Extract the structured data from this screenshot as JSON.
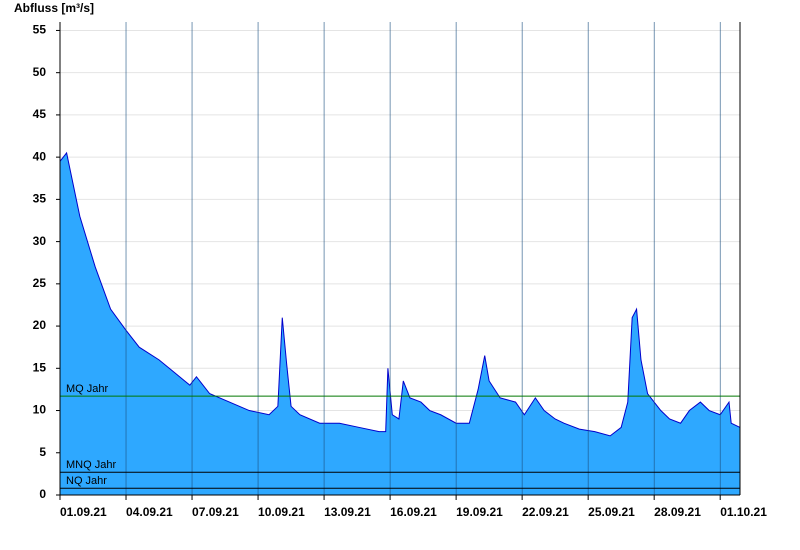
{
  "chart_data": {
    "type": "area",
    "y_label": "Abfluss [m³/s]",
    "x": [
      0,
      0.3,
      0.9,
      1.6,
      2.3,
      3,
      3.6,
      4.5,
      5.2,
      5.9,
      6.2,
      6.8,
      7.7,
      8.6,
      9.5,
      9.9,
      10.1,
      10.3,
      10.5,
      10.9,
      11.8,
      12.7,
      13.6,
      14.5,
      14.8,
      14.9,
      15.1,
      15.4,
      15.6,
      15.9,
      16.4,
      16.8,
      17.3,
      18,
      18.6,
      19,
      19.3,
      19.5,
      20,
      20.7,
      21.1,
      21.6,
      22,
      22.5,
      22.9,
      23.6,
      24.3,
      25,
      25.5,
      25.8,
      26,
      26.2,
      26.4,
      26.7,
      27.3,
      27.7,
      28.2,
      28.6,
      29.1,
      29.5,
      30,
      30.4,
      30.5,
      30.9
    ],
    "series": [
      {
        "name": "Abfluss",
        "color": "#2ea8ff",
        "line_color": "#0000cc",
        "values": [
          39.5,
          40.5,
          33,
          27,
          22,
          19.5,
          17.5,
          16,
          14.5,
          13,
          14,
          12,
          11,
          10,
          9.5,
          10.5,
          21,
          15.5,
          10.5,
          9.5,
          8.5,
          8.5,
          8,
          7.5,
          7.5,
          15,
          9.5,
          9,
          13.5,
          11.5,
          11,
          10,
          9.5,
          8.5,
          8.5,
          12.5,
          16.5,
          13.5,
          11.5,
          11,
          9.5,
          11.5,
          10,
          9,
          8.5,
          7.8,
          7.5,
          7,
          8,
          11,
          21,
          22,
          16,
          12,
          10,
          9,
          8.5,
          10,
          11,
          10,
          9.5,
          11,
          8.5,
          8
        ]
      }
    ],
    "reference_lines": [
      {
        "label": "MQ Jahr",
        "value": 11.7,
        "color": "#007700"
      },
      {
        "label": "MNQ Jahr",
        "value": 2.7,
        "color": "#000000"
      },
      {
        "label": "NQ Jahr",
        "value": 0.8,
        "color": "#000000"
      }
    ],
    "xlim": [
      0,
      30.9
    ],
    "xticks": [
      {
        "value": 0,
        "label": "01.09.21"
      },
      {
        "value": 3,
        "label": "04.09.21"
      },
      {
        "value": 6,
        "label": "07.09.21"
      },
      {
        "value": 9,
        "label": "10.09.21"
      },
      {
        "value": 12,
        "label": "13.09.21"
      },
      {
        "value": 15,
        "label": "16.09.21"
      },
      {
        "value": 18,
        "label": "19.09.21"
      },
      {
        "value": 21,
        "label": "22.09.21"
      },
      {
        "value": 24,
        "label": "25.09.21"
      },
      {
        "value": 27,
        "label": "28.09.21"
      },
      {
        "value": 30,
        "label": "01.10.21"
      }
    ],
    "ylim": [
      0,
      56
    ],
    "yticks": [
      0,
      5,
      10,
      15,
      20,
      25,
      30,
      35,
      40,
      45,
      50,
      55
    ],
    "grid": true
  }
}
